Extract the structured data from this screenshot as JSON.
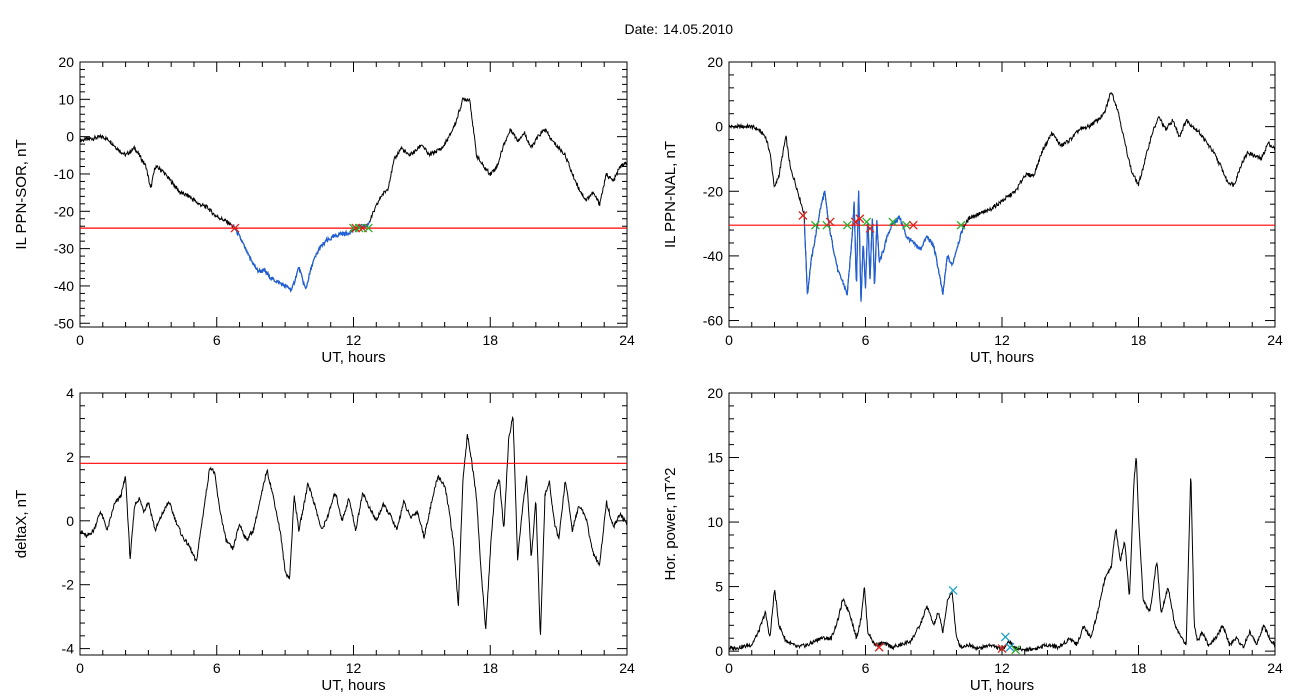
{
  "page": {
    "date_label": "Date:",
    "date_value": "14.05.2010"
  },
  "colors": {
    "data_line": "#000000",
    "threshold_line": "#ff0000",
    "highlight_line": "#1f5fd8",
    "marker_red": "#e0201a",
    "marker_green": "#2ab02a",
    "marker_cyan": "#1aa0c8"
  },
  "chart_data": [
    {
      "type": "line",
      "xlabel": "UT, hours",
      "ylabel": "IL PPN-SOR, nT",
      "xlim": [
        0,
        24
      ],
      "ylim": [
        -51,
        20
      ],
      "xticks": [
        0,
        6,
        12,
        18,
        24
      ],
      "yticks": [
        -50,
        -40,
        -30,
        -20,
        -10,
        0,
        10,
        20
      ],
      "threshold": -24.5,
      "highlight_range": [
        6.7,
        12.7
      ],
      "series": [
        {
          "x": [
            0,
            0.5,
            1.0,
            1.3,
            1.6,
            1.8,
            2.0,
            2.4,
            2.9,
            3.1,
            3.3,
            3.6,
            4.0,
            4.4,
            4.8,
            5.2,
            5.6,
            5.9,
            6.2,
            6.5,
            6.8,
            7.1,
            7.4,
            7.8,
            8.1,
            8.4,
            8.7,
            9.0,
            9.3,
            9.6,
            9.9,
            10.2,
            10.5,
            10.8,
            11.1,
            11.4,
            11.7,
            12.0,
            12.3,
            12.6,
            12.9,
            13.2,
            13.5,
            13.8,
            14.1,
            14.4,
            14.7,
            15.0,
            15.3,
            15.6,
            15.9,
            16.2,
            16.5,
            16.8,
            17.1,
            17.4,
            17.7,
            18.0,
            18.3,
            18.6,
            18.9,
            19.2,
            19.5,
            19.8,
            20.1,
            20.4,
            20.7,
            21.0,
            21.3,
            21.6,
            21.9,
            22.2,
            22.5,
            22.8,
            23.1,
            23.4,
            23.7,
            24.0
          ],
          "y": [
            -1,
            -0.5,
            0,
            -1,
            -3,
            -4,
            -5,
            -3,
            -8,
            -14,
            -8,
            -9,
            -12,
            -15,
            -16,
            -18,
            -19,
            -21,
            -22,
            -23,
            -24.5,
            -28,
            -32,
            -36,
            -36,
            -38,
            -39,
            -40,
            -41,
            -35,
            -41,
            -34,
            -30,
            -28,
            -27,
            -26,
            -26,
            -25,
            -24,
            -24,
            -20,
            -16,
            -14,
            -6,
            -3,
            -5,
            -4,
            -2,
            -5,
            -4,
            -3,
            0,
            4,
            10,
            10,
            -5,
            -8,
            -10,
            -8,
            -2,
            2,
            -1,
            1,
            -3,
            0,
            2,
            -1,
            -3,
            -5,
            -10,
            -14,
            -17,
            -15,
            -18,
            -10,
            -12,
            -8,
            -7
          ]
        }
      ],
      "markers": [
        {
          "x": 6.8,
          "y": -24.5,
          "color": "red"
        },
        {
          "x": 12.0,
          "y": -24.5,
          "color": "green"
        },
        {
          "x": 12.1,
          "y": -24.5,
          "color": "red"
        },
        {
          "x": 12.25,
          "y": -24.5,
          "color": "green"
        },
        {
          "x": 12.4,
          "y": -24.5,
          "color": "red"
        },
        {
          "x": 12.65,
          "y": -24.5,
          "color": "green"
        }
      ]
    },
    {
      "type": "line",
      "xlabel": "UT, hours",
      "ylabel": "IL PPN-NAL, nT",
      "xlim": [
        0,
        24
      ],
      "ylim": [
        -62,
        20
      ],
      "xticks": [
        0,
        6,
        12,
        18,
        24
      ],
      "yticks": [
        -60,
        -40,
        -20,
        0,
        20
      ],
      "threshold": -30.5,
      "highlight_range": [
        3.3,
        10.3
      ],
      "series": [
        {
          "x": [
            0,
            0.5,
            1.0,
            1.3,
            1.6,
            1.8,
            2.0,
            2.2,
            2.5,
            2.7,
            2.9,
            3.1,
            3.3,
            3.45,
            3.6,
            3.8,
            4.0,
            4.2,
            4.4,
            4.6,
            4.8,
            5.0,
            5.2,
            5.4,
            5.5,
            5.6,
            5.7,
            5.8,
            5.9,
            6.0,
            6.1,
            6.2,
            6.3,
            6.4,
            6.5,
            6.6,
            6.8,
            7.0,
            7.2,
            7.5,
            7.8,
            8.1,
            8.4,
            8.7,
            9.0,
            9.2,
            9.4,
            9.6,
            9.8,
            10.0,
            10.3,
            10.6,
            11.0,
            11.4,
            11.8,
            12.2,
            12.6,
            13.0,
            13.4,
            13.8,
            14.2,
            14.6,
            15.0,
            15.4,
            15.8,
            16.2,
            16.5,
            16.8,
            17.1,
            17.4,
            17.7,
            18.0,
            18.3,
            18.6,
            18.9,
            19.2,
            19.5,
            19.8,
            20.1,
            20.4,
            20.7,
            21.0,
            21.3,
            21.6,
            21.9,
            22.2,
            22.5,
            22.8,
            23.1,
            23.4,
            23.7,
            24.0
          ],
          "y": [
            0,
            0,
            0,
            -1,
            -3,
            -8,
            -19,
            -15,
            -3,
            -13,
            -17,
            -22,
            -27,
            -52,
            -42,
            -34,
            -26,
            -20,
            -31,
            -38,
            -45,
            -48,
            -52,
            -35,
            -23,
            -50,
            -18,
            -55,
            -35,
            -50,
            -28,
            -48,
            -27,
            -50,
            -29,
            -42,
            -38,
            -33,
            -30,
            -28,
            -34,
            -36,
            -38,
            -34,
            -37,
            -44,
            -52,
            -40,
            -43,
            -38,
            -31,
            -28,
            -27,
            -26,
            -24,
            -22,
            -20,
            -15,
            -15,
            -7,
            -2,
            -6,
            -4,
            -1,
            0,
            2,
            4,
            11,
            5,
            -5,
            -14,
            -18,
            -10,
            -2,
            3,
            -1,
            2,
            -3,
            2,
            0,
            -2,
            -5,
            -8,
            -12,
            -17,
            -18,
            -12,
            -8,
            -9,
            -10,
            -5,
            -7
          ]
        }
      ],
      "markers": [
        {
          "x": 3.25,
          "y": -27.5,
          "color": "red"
        },
        {
          "x": 3.8,
          "y": -30.5,
          "color": "green"
        },
        {
          "x": 4.3,
          "y": -30.5,
          "color": "green"
        },
        {
          "x": 4.45,
          "y": -29.5,
          "color": "red"
        },
        {
          "x": 5.2,
          "y": -30.5,
          "color": "green"
        },
        {
          "x": 5.55,
          "y": -29.5,
          "color": "red"
        },
        {
          "x": 5.75,
          "y": -28.5,
          "color": "red"
        },
        {
          "x": 6.05,
          "y": -29.5,
          "color": "green"
        },
        {
          "x": 6.2,
          "y": -31.5,
          "color": "red"
        },
        {
          "x": 7.2,
          "y": -29.5,
          "color": "green"
        },
        {
          "x": 7.8,
          "y": -30.5,
          "color": "green"
        },
        {
          "x": 8.1,
          "y": -30.5,
          "color": "red"
        },
        {
          "x": 10.2,
          "y": -30.5,
          "color": "green"
        }
      ]
    },
    {
      "type": "line",
      "xlabel": "UT, hours",
      "ylabel": "deltaX, nT",
      "xlim": [
        0,
        24
      ],
      "ylim": [
        -4.2,
        4
      ],
      "xticks": [
        0,
        6,
        12,
        18,
        24
      ],
      "yticks": [
        -4,
        -2,
        0,
        2,
        4
      ],
      "threshold": 1.8,
      "series": [
        {
          "x": [
            0,
            0.3,
            0.6,
            0.9,
            1.2,
            1.5,
            1.8,
            2.0,
            2.2,
            2.4,
            2.6,
            2.8,
            3.0,
            3.3,
            3.6,
            3.9,
            4.2,
            4.5,
            4.8,
            5.1,
            5.4,
            5.7,
            5.9,
            6.1,
            6.4,
            6.7,
            7.0,
            7.3,
            7.6,
            7.9,
            8.2,
            8.5,
            8.8,
            9.0,
            9.2,
            9.4,
            9.6,
            9.8,
            10.0,
            10.3,
            10.6,
            10.9,
            11.2,
            11.5,
            11.8,
            12.1,
            12.4,
            12.7,
            13.0,
            13.3,
            13.6,
            13.9,
            14.2,
            14.5,
            14.8,
            15.1,
            15.4,
            15.7,
            16.0,
            16.2,
            16.4,
            16.6,
            16.8,
            17.0,
            17.2,
            17.4,
            17.6,
            17.8,
            18.0,
            18.2,
            18.4,
            18.6,
            18.8,
            19.0,
            19.2,
            19.4,
            19.6,
            19.8,
            20.0,
            20.2,
            20.4,
            20.6,
            20.8,
            21.0,
            21.3,
            21.6,
            21.9,
            22.2,
            22.5,
            22.8,
            23.1,
            23.4,
            23.7,
            24.0
          ],
          "y": [
            -0.3,
            -0.5,
            -0.3,
            0.3,
            -0.3,
            0.5,
            0.8,
            1.4,
            -1.2,
            0.5,
            0.7,
            0.3,
            0.6,
            -0.3,
            0.2,
            0.6,
            0.0,
            -0.5,
            -0.8,
            -1.3,
            0.2,
            1.7,
            1.5,
            0.5,
            -0.6,
            -0.9,
            -0.1,
            -0.6,
            -0.3,
            0.6,
            1.6,
            0.7,
            -0.4,
            -1.6,
            -1.8,
            0.8,
            -0.3,
            0.4,
            1.2,
            0.5,
            -0.3,
            0.2,
            0.9,
            0.0,
            0.7,
            -0.3,
            0.9,
            0.4,
            0.0,
            0.5,
            0.2,
            -0.3,
            0.6,
            0.1,
            0.3,
            -0.5,
            0.5,
            1.4,
            1.1,
            0.3,
            -0.8,
            -2.7,
            1.3,
            2.7,
            1.8,
            0.7,
            -1.6,
            -3.4,
            -1.0,
            0.9,
            1.3,
            -0.3,
            2.5,
            3.3,
            -1.2,
            0.3,
            1.4,
            -1.2,
            0.7,
            -3.7,
            0.8,
            1.2,
            0.0,
            -0.6,
            1.3,
            -0.3,
            0.5,
            0.1,
            -1.0,
            -1.4,
            0.6,
            -0.2,
            0.2,
            -0.1
          ]
        }
      ]
    },
    {
      "type": "line",
      "xlabel": "UT, hours",
      "ylabel": "Hor. power, nT^2",
      "xlim": [
        0,
        24
      ],
      "ylim": [
        -0.3,
        20
      ],
      "xticks": [
        0,
        6,
        12,
        18,
        24
      ],
      "yticks": [
        0,
        5,
        10,
        15,
        20
      ],
      "series": [
        {
          "x": [
            0,
            0.5,
            1.0,
            1.3,
            1.6,
            1.8,
            2.0,
            2.2,
            2.5,
            3.0,
            3.5,
            4.0,
            4.5,
            4.8,
            5.0,
            5.3,
            5.6,
            5.8,
            5.95,
            6.1,
            6.4,
            6.8,
            7.2,
            7.6,
            8.0,
            8.4,
            8.7,
            9.0,
            9.2,
            9.4,
            9.6,
            9.8,
            10.0,
            10.2,
            10.5,
            11.0,
            11.5,
            12.0,
            12.3,
            12.6,
            13.0,
            13.5,
            14.0,
            14.5,
            15.0,
            15.3,
            15.6,
            15.9,
            16.2,
            16.5,
            16.8,
            17.0,
            17.2,
            17.4,
            17.6,
            17.8,
            17.9,
            18.0,
            18.2,
            18.5,
            18.8,
            19.0,
            19.3,
            19.6,
            19.9,
            20.1,
            20.3,
            20.45,
            20.6,
            20.8,
            21.1,
            21.4,
            21.7,
            22.0,
            22.3,
            22.6,
            22.9,
            23.2,
            23.5,
            23.8,
            24.0
          ],
          "y": [
            0.2,
            0.3,
            0.5,
            1.5,
            3.0,
            1.0,
            4.8,
            2.0,
            0.8,
            0.3,
            0.5,
            1.0,
            1.0,
            2.5,
            4.0,
            3.0,
            1.0,
            2.5,
            5.0,
            1.5,
            0.5,
            0.6,
            0.3,
            0.5,
            0.8,
            2.0,
            3.5,
            2.0,
            3.0,
            1.5,
            3.8,
            4.7,
            1.0,
            0.3,
            0.5,
            0.2,
            0.5,
            0.1,
            0.8,
            0.2,
            0.1,
            0.2,
            0.5,
            0.3,
            1.0,
            0.5,
            2.0,
            1.0,
            3.0,
            5.5,
            6.5,
            9.5,
            7.0,
            8.5,
            4.0,
            13.0,
            15.3,
            10.5,
            4.0,
            3.0,
            7.0,
            3.0,
            5.0,
            2.0,
            1.0,
            0.5,
            14.0,
            2.0,
            0.8,
            1.5,
            0.4,
            1.0,
            2.0,
            0.5,
            1.0,
            0.3,
            1.5,
            0.5,
            2.0,
            0.8,
            0.5
          ]
        }
      ],
      "markers": [
        {
          "x": 6.6,
          "y": 0.3,
          "color": "red"
        },
        {
          "x": 9.85,
          "y": 4.7,
          "color": "cyan"
        },
        {
          "x": 12.0,
          "y": 0.2,
          "color": "red"
        },
        {
          "x": 12.15,
          "y": 1.1,
          "color": "cyan"
        },
        {
          "x": 12.35,
          "y": 0.3,
          "color": "cyan"
        },
        {
          "x": 12.6,
          "y": 0.1,
          "color": "green"
        }
      ]
    }
  ]
}
